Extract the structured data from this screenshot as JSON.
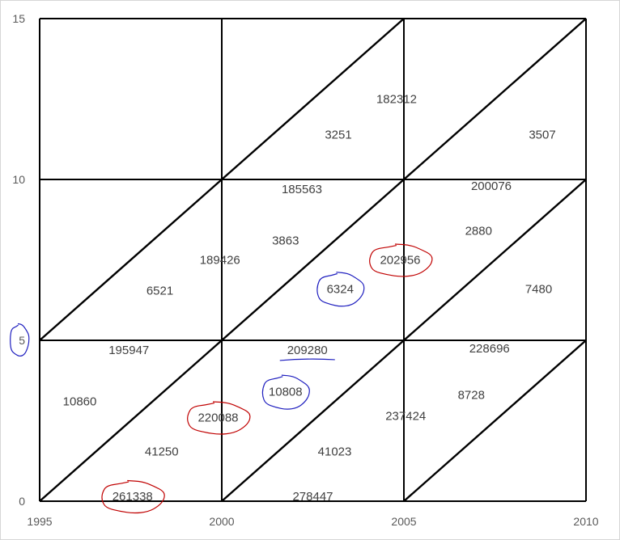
{
  "chart_data": {
    "type": "scatter",
    "title": "",
    "xlabel": "",
    "ylabel": "",
    "xlim": [
      1995,
      2010
    ],
    "ylim": [
      0,
      15
    ],
    "x_ticks": [
      "1995",
      "2000",
      "2005",
      "2010"
    ],
    "y_ticks": [
      "0",
      "5",
      "10",
      "15"
    ],
    "grid": true,
    "x_gridlines": [
      2000,
      2005,
      2010
    ],
    "y_gridlines": [
      5,
      10,
      15
    ],
    "diagonals": [
      {
        "from": [
          1995,
          0
        ],
        "to": [
          2000,
          5
        ]
      },
      {
        "from": [
          1995,
          5
        ],
        "to": [
          2000,
          10
        ]
      },
      {
        "from": [
          2000,
          0
        ],
        "to": [
          2005,
          5
        ]
      },
      {
        "from": [
          2000,
          5
        ],
        "to": [
          2005,
          10
        ]
      },
      {
        "from": [
          2000,
          10
        ],
        "to": [
          2005,
          15
        ]
      },
      {
        "from": [
          2005,
          0
        ],
        "to": [
          2010,
          5
        ]
      },
      {
        "from": [
          2005,
          5
        ],
        "to": [
          2010,
          10
        ]
      },
      {
        "from": [
          2005,
          10
        ],
        "to": [
          2010,
          15
        ]
      }
    ],
    "cell_labels": [
      {
        "text": "182312",
        "x": 2004.8,
        "y": 12.5
      },
      {
        "text": "3251",
        "x": 2003.2,
        "y": 11.4
      },
      {
        "text": "3507",
        "x": 2008.8,
        "y": 11.4
      },
      {
        "text": "185563",
        "x": 2002.2,
        "y": 9.7
      },
      {
        "text": "200076",
        "x": 2007.4,
        "y": 9.8
      },
      {
        "text": "3863",
        "x": 2001.75,
        "y": 8.1
      },
      {
        "text": "2880",
        "x": 2007.05,
        "y": 8.4
      },
      {
        "text": "189426",
        "x": 1999.95,
        "y": 7.5
      },
      {
        "text": "202956",
        "x": 2004.9,
        "y": 7.5
      },
      {
        "text": "6521",
        "x": 1998.3,
        "y": 6.55
      },
      {
        "text": "6324",
        "x": 2003.25,
        "y": 6.6
      },
      {
        "text": "7480",
        "x": 2008.7,
        "y": 6.6
      },
      {
        "text": "195947",
        "x": 1997.45,
        "y": 4.7
      },
      {
        "text": "209280",
        "x": 2002.35,
        "y": 4.7
      },
      {
        "text": "228696",
        "x": 2007.35,
        "y": 4.75
      },
      {
        "text": "10860",
        "x": 1996.1,
        "y": 3.1
      },
      {
        "text": "10808",
        "x": 2001.75,
        "y": 3.4
      },
      {
        "text": "8728",
        "x": 2006.85,
        "y": 3.3
      },
      {
        "text": "220088",
        "x": 1999.9,
        "y": 2.6
      },
      {
        "text": "237424",
        "x": 2005.05,
        "y": 2.65
      },
      {
        "text": "41250",
        "x": 1998.35,
        "y": 1.55
      },
      {
        "text": "41023",
        "x": 2003.1,
        "y": 1.55
      },
      {
        "text": "261338",
        "x": 1997.55,
        "y": 0.15
      },
      {
        "text": "278447",
        "x": 2002.5,
        "y": 0.15
      }
    ],
    "annotations": {
      "red_circles": [
        "202956",
        "220088",
        "261338"
      ],
      "blue_circles": [
        "6324",
        "10808",
        "5"
      ],
      "blue_underline": "209280"
    },
    "colors": {
      "red_annotation": "#c00000",
      "blue_annotation": "#1f1fbf",
      "lines": "#000000",
      "text": "#404040"
    }
  }
}
